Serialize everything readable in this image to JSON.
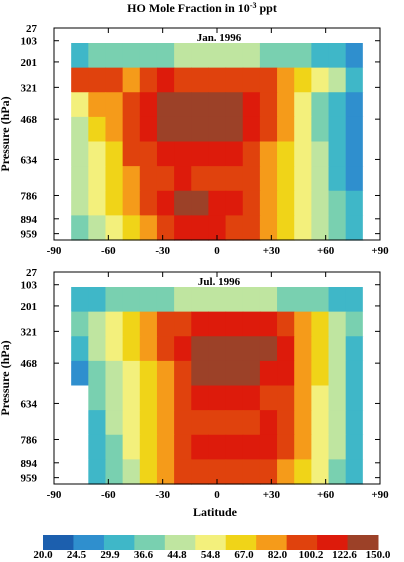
{
  "chart_data": {
    "type": "heatmap",
    "title_main": "HO Mole Fraction in 10",
    "title_exp": "-3",
    "title_unit": " ppt",
    "xlabel": "Latitude",
    "ylabel": "Pressure (hPa)",
    "xlim": [
      -90,
      90
    ],
    "y_ticks": [
      "27",
      "103",
      "201",
      "321",
      "468",
      "634",
      "786",
      "894",
      "959"
    ],
    "x_ticks": [
      {
        "value": -90,
        "label": "-90"
      },
      {
        "value": -60,
        "label": "-60"
      },
      {
        "value": -30,
        "label": "-30"
      },
      {
        "value": 0,
        "label": "0"
      },
      {
        "value": 30,
        "label": "+30"
      },
      {
        "value": 60,
        "label": "+60"
      },
      {
        "value": 90,
        "label": "+90"
      }
    ],
    "colorbar": {
      "levels": [
        "20.0",
        "24.5",
        "29.9",
        "36.6",
        "44.8",
        "54.8",
        "67.0",
        "82.0",
        "100.2",
        "122.6",
        "150.0"
      ],
      "colors": [
        "#1c5fae",
        "#2f8fce",
        "#3fb7c8",
        "#79d0b0",
        "#bfe5a0",
        "#f3f07c",
        "#f0d418",
        "#f59b1a",
        "#e0420d",
        "#dd1b0b",
        "#9c4128"
      ]
    },
    "panels": [
      {
        "label": "Jan.  1996",
        "lat": [
          -90,
          -80,
          -70,
          -60,
          -50,
          -40,
          -30,
          -20,
          -10,
          0,
          10,
          20,
          30,
          40,
          50,
          60,
          70,
          80,
          90
        ],
        "levels": [
          "103",
          "201",
          "321",
          "468",
          "634",
          "786",
          "894",
          "959"
        ],
        "values": [
          [
            2,
            2,
            3,
            3,
            3,
            3,
            3,
            4,
            4,
            4,
            4,
            4,
            3,
            3,
            3,
            2,
            2,
            1,
            1
          ],
          [
            7,
            8,
            8,
            8,
            7,
            8,
            9,
            8,
            8,
            8,
            8,
            8,
            8,
            7,
            6,
            5,
            4,
            2,
            1
          ],
          [
            3,
            5,
            7,
            7,
            8,
            9,
            10,
            10,
            10,
            10,
            10,
            9,
            8,
            7,
            5,
            3,
            2,
            1,
            1
          ],
          [
            3,
            4,
            6,
            7,
            8,
            9,
            10,
            10,
            10,
            10,
            10,
            9,
            8,
            7,
            5,
            3,
            2,
            1,
            1
          ],
          [
            3,
            4,
            5,
            6,
            8,
            8,
            9,
            9,
            9,
            9,
            9,
            8,
            7,
            6,
            5,
            4,
            2,
            1,
            1
          ],
          [
            3,
            4,
            5,
            6,
            7,
            8,
            8,
            9,
            8,
            8,
            8,
            8,
            7,
            6,
            5,
            4,
            2,
            1,
            1
          ],
          [
            3,
            4,
            5,
            6,
            7,
            8,
            9,
            10,
            10,
            9,
            9,
            8,
            7,
            6,
            5,
            4,
            3,
            2,
            2
          ],
          [
            2,
            3,
            4,
            5,
            6,
            7,
            8,
            9,
            9,
            9,
            8,
            8,
            7,
            6,
            5,
            4,
            3,
            2,
            2
          ]
        ],
        "blank_rows": []
      },
      {
        "label": "Jul.  1996",
        "lat": [
          -90,
          -80,
          -70,
          -60,
          -50,
          -40,
          -30,
          -20,
          -10,
          0,
          10,
          20,
          30,
          40,
          50,
          60,
          70,
          80,
          90
        ],
        "levels": [
          "103",
          "201",
          "321",
          "468",
          "634",
          "786",
          "894",
          "959"
        ],
        "values": [
          [
            1,
            2,
            2,
            3,
            3,
            3,
            3,
            4,
            4,
            4,
            4,
            4,
            4,
            3,
            3,
            3,
            2,
            2,
            1
          ],
          [
            2,
            3,
            4,
            5,
            6,
            7,
            8,
            8,
            9,
            9,
            9,
            9,
            9,
            8,
            7,
            6,
            4,
            3,
            2
          ],
          [
            1,
            2,
            4,
            5,
            6,
            7,
            8,
            9,
            10,
            10,
            10,
            10,
            10,
            9,
            7,
            6,
            4,
            2,
            1
          ],
          [
            0,
            1,
            3,
            4,
            5,
            6,
            7,
            8,
            10,
            10,
            10,
            10,
            9,
            9,
            7,
            6,
            4,
            2,
            0
          ],
          [
            0,
            0,
            3,
            4,
            5,
            6,
            7,
            8,
            9,
            9,
            9,
            9,
            8,
            8,
            7,
            5,
            4,
            2,
            0
          ],
          [
            0,
            0,
            2,
            4,
            5,
            6,
            7,
            8,
            8,
            8,
            8,
            8,
            9,
            8,
            7,
            5,
            4,
            2,
            0
          ],
          [
            0,
            0,
            2,
            3,
            5,
            6,
            7,
            8,
            9,
            9,
            9,
            9,
            9,
            8,
            7,
            5,
            4,
            2,
            0
          ],
          [
            0,
            0,
            2,
            3,
            4,
            6,
            7,
            8,
            8,
            8,
            8,
            8,
            8,
            7,
            6,
            5,
            3,
            2,
            0
          ]
        ],
        "blank_rows": [
          3,
          4,
          5,
          6,
          7
        ]
      }
    ]
  }
}
